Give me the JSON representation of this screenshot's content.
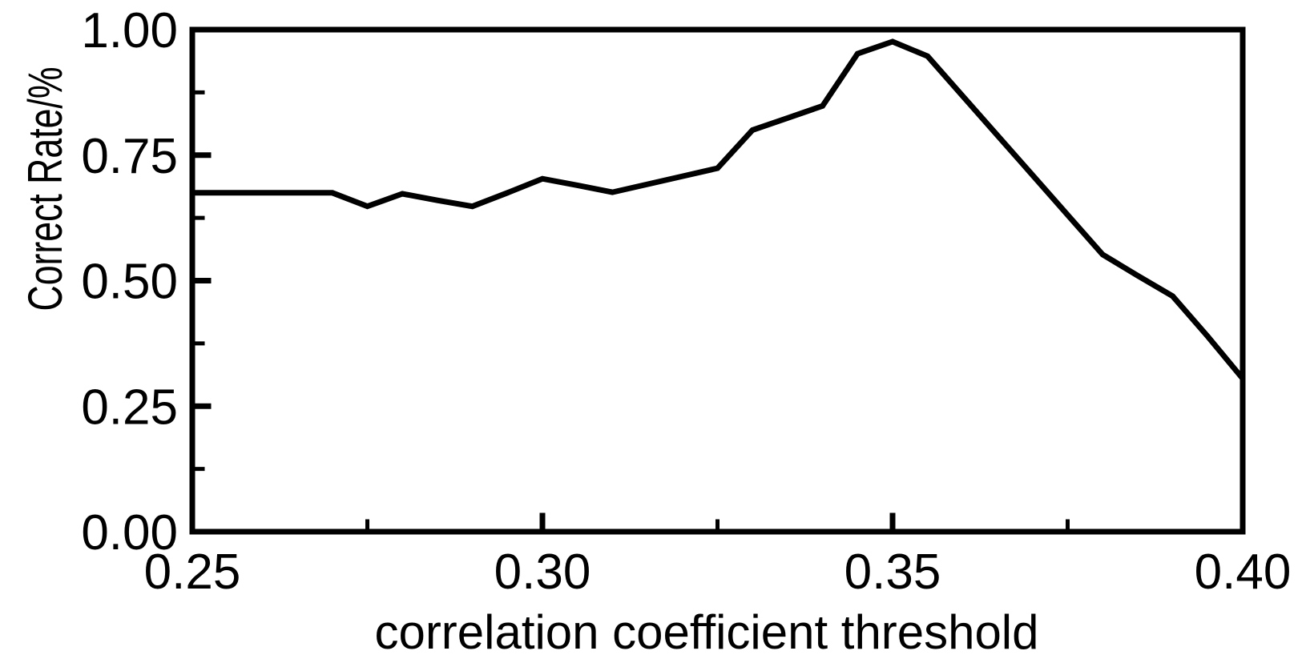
{
  "chart_data": {
    "type": "line",
    "title": "",
    "xlabel": "correlation coefficient threshold",
    "ylabel": "Correct Rate/%",
    "x": [
      0.25,
      0.255,
      0.26,
      0.265,
      0.27,
      0.275,
      0.28,
      0.285,
      0.29,
      0.295,
      0.3,
      0.305,
      0.31,
      0.315,
      0.32,
      0.325,
      0.33,
      0.335,
      0.34,
      0.345,
      0.35,
      0.355,
      0.36,
      0.365,
      0.37,
      0.375,
      0.38,
      0.385,
      0.39,
      0.395,
      0.4
    ],
    "y": [
      0.675,
      0.675,
      0.675,
      0.675,
      0.675,
      0.648,
      0.673,
      0.66,
      0.648,
      0.675,
      0.703,
      0.69,
      0.676,
      0.692,
      0.708,
      0.724,
      0.8,
      0.824,
      0.848,
      0.952,
      0.976,
      0.947,
      0.868,
      0.789,
      0.71,
      0.631,
      0.552,
      0.51,
      0.469,
      0.389,
      0.305
    ],
    "xlim": [
      0.25,
      0.4
    ],
    "ylim": [
      0.0,
      1.0
    ],
    "x_major_ticks": [
      0.25,
      0.3,
      0.35,
      0.4
    ],
    "x_minor_ticks": [
      0.275,
      0.325,
      0.375
    ],
    "x_tick_labels": [
      "0.25",
      "0.30",
      "0.35",
      "0.40"
    ],
    "y_major_ticks": [
      0.0,
      0.25,
      0.5,
      0.75,
      1.0
    ],
    "y_minor_ticks": [
      0.125,
      0.375,
      0.625,
      0.875
    ],
    "y_tick_labels": [
      "0.00",
      "0.25",
      "0.50",
      "0.75",
      "1.00"
    ],
    "grid": false,
    "legend_position": "none",
    "line_color": "#000000",
    "axis_color": "#000000",
    "background_color": "#ffffff"
  }
}
